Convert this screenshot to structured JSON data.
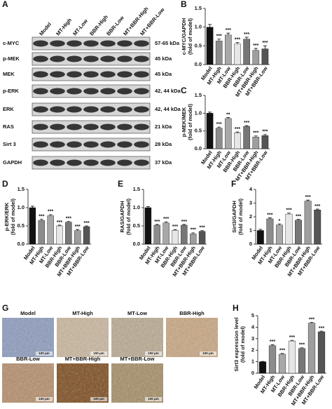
{
  "blot": {
    "panel": "A",
    "columns": [
      "Model",
      "MT-High",
      "MT-Low",
      "BBR-High",
      "BBR-Low",
      "MT+BBR-High",
      "MT+BBR-Low"
    ],
    "rows": [
      {
        "protein": "c-MYC",
        "size": "57-65 kDa"
      },
      {
        "protein": "p-MEK",
        "size": "45 kDa"
      },
      {
        "protein": "MEK",
        "size": "45 kDa"
      },
      {
        "protein": "p-ERK",
        "size": "42, 44 kDa"
      },
      {
        "protein": "ERK",
        "size": "42, 44 kDa"
      },
      {
        "protein": "RAS",
        "size": "21 kDa"
      },
      {
        "protein": "Sirt 3",
        "size": "28 kDa"
      },
      {
        "protein": "GAPDH",
        "size": "37 kDa"
      }
    ]
  },
  "histology": {
    "panel": "G",
    "samples": [
      "Model",
      "MT-High",
      "MT-Low",
      "BBR-High",
      "BBR-Low",
      "MT+BBR-High",
      "MT+BBR-Low"
    ],
    "scale_bar": "100 μm"
  },
  "chart_data": [
    {
      "type": "bar",
      "panel": "B",
      "ylabel": [
        "c-MYC/GAPDH",
        "(fold of model)"
      ],
      "categories": [
        "Model",
        "MT-High",
        "MT-Low",
        "BBR-High",
        "BBR-Low",
        "MT+BBR-High",
        "MT+BBR-Low"
      ],
      "values": [
        1.0,
        0.63,
        0.79,
        0.55,
        0.68,
        0.38,
        0.42
      ],
      "errors": [
        0.07,
        0.05,
        0.05,
        0.04,
        0.05,
        0.05,
        0.08
      ],
      "annotations": [
        null,
        "***",
        "***",
        "***",
        "***",
        "***",
        "***"
      ],
      "colors": [
        "#111111",
        "#8c8c8c",
        "#a8a8a8",
        "#e6e6e6",
        "#777777",
        "#9e9e9e",
        "#555555"
      ],
      "ylim": [
        0,
        1.5
      ],
      "yticks": [
        {
          "value": 0,
          "label": "0.0"
        },
        0.5,
        {
          "value": 1,
          "label": "1.0"
        },
        1.5
      ]
    },
    {
      "type": "bar",
      "panel": "C",
      "ylabel": [
        "p-MEK/MEK",
        "(fold of model)"
      ],
      "categories": [
        "Model",
        "MT-High",
        "MT-Low",
        "BBR-High",
        "BBR-Low",
        "MT+BBR-High",
        "MT+BBR-Low"
      ],
      "values": [
        1.0,
        0.58,
        0.85,
        0.45,
        0.63,
        0.33,
        0.37
      ],
      "errors": [
        0.03,
        0.03,
        0.03,
        0.02,
        0.02,
        0.03,
        0.03
      ],
      "annotations": [
        null,
        "***",
        "**",
        "***",
        "***",
        "***",
        "***"
      ],
      "colors": [
        "#111111",
        "#8c8c8c",
        "#a8a8a8",
        "#e6e6e6",
        "#777777",
        "#9e9e9e",
        "#555555"
      ],
      "ylim": [
        0,
        1.5
      ],
      "yticks": [
        {
          "value": 0,
          "label": "0.0"
        },
        0.5,
        {
          "value": 1,
          "label": "1.0"
        },
        1.5
      ]
    },
    {
      "type": "bar",
      "panel": "D",
      "ylabel": [
        "p-ERK/ERK",
        "(fold of model)"
      ],
      "categories": [
        "Model",
        "MT-High",
        "MT-Low",
        "BBR-High",
        "BBR-Low",
        "MT+BBR-High",
        "MT+BBR-Low"
      ],
      "values": [
        1.0,
        0.65,
        0.78,
        0.5,
        0.6,
        0.37,
        0.48
      ],
      "errors": [
        0.04,
        0.03,
        0.03,
        0.02,
        0.02,
        0.03,
        0.02
      ],
      "annotations": [
        null,
        "***",
        "***",
        "***",
        "***",
        "***",
        "***"
      ],
      "colors": [
        "#111111",
        "#8c8c8c",
        "#a8a8a8",
        "#e6e6e6",
        "#777777",
        "#9e9e9e",
        "#555555"
      ],
      "ylim": [
        0,
        1.5
      ],
      "yticks": [
        {
          "value": 0,
          "label": "0.0"
        },
        0.5,
        {
          "value": 1,
          "label": "1.0"
        },
        1.5
      ]
    },
    {
      "type": "bar",
      "panel": "E",
      "ylabel": [
        "RAS/GAPDH",
        "(fold of model)"
      ],
      "categories": [
        "Model",
        "MT-High",
        "MT-Low",
        "BBR-High",
        "BBR-Low",
        "MT+BBR-High",
        "MT+BBR-Low"
      ],
      "values": [
        1.0,
        0.52,
        0.58,
        0.38,
        0.52,
        0.28,
        0.35
      ],
      "errors": [
        0.03,
        0.02,
        0.03,
        0.02,
        0.02,
        0.03,
        0.02
      ],
      "annotations": [
        null,
        "***",
        "***",
        "***",
        "***",
        "***",
        "***"
      ],
      "colors": [
        "#111111",
        "#8c8c8c",
        "#a8a8a8",
        "#e6e6e6",
        "#777777",
        "#9e9e9e",
        "#555555"
      ],
      "ylim": [
        0,
        1.5
      ],
      "yticks": [
        {
          "value": 0,
          "label": "0.0"
        },
        0.5,
        {
          "value": 1,
          "label": "1.0"
        },
        1.5
      ]
    },
    {
      "type": "bar",
      "panel": "F",
      "ylabel": [
        "Sirt3/GAPDH",
        "(fold of model)"
      ],
      "categories": [
        "Model",
        "MT-High",
        "MT-Low",
        "BBR-High",
        "BBR-Low",
        "MT+BBR-High",
        "MT+BBR-Low"
      ],
      "values": [
        1.0,
        1.85,
        1.4,
        2.2,
        1.75,
        3.15,
        2.5
      ],
      "errors": [
        0.08,
        0.07,
        0.08,
        0.07,
        0.06,
        0.07,
        0.06
      ],
      "annotations": [
        null,
        "***",
        "*",
        "***",
        "***",
        "***",
        "***"
      ],
      "colors": [
        "#111111",
        "#8c8c8c",
        "#a8a8a8",
        "#e6e6e6",
        "#777777",
        "#9e9e9e",
        "#555555"
      ],
      "ylim": [
        0,
        4
      ],
      "yticks": [
        0,
        1,
        2,
        3,
        4
      ]
    },
    {
      "type": "bar",
      "panel": "H",
      "ylabel": [
        "Sirt3 expression level",
        "(fold of model)"
      ],
      "categories": [
        "Model",
        "MT-High",
        "MT-Low",
        "BBR-High",
        "BBR-Low",
        "MT+BBR-High",
        "MT+BBR-Low"
      ],
      "values": [
        1.0,
        2.4,
        1.65,
        2.8,
        2.15,
        4.35,
        3.6
      ],
      "errors": [
        0.03,
        0.08,
        0.07,
        0.06,
        0.06,
        0.07,
        0.06
      ],
      "annotations": [
        null,
        "***",
        "***",
        "***",
        "***",
        "***",
        "***"
      ],
      "colors": [
        "#111111",
        "#8c8c8c",
        "#a8a8a8",
        "#e6e6e6",
        "#777777",
        "#9e9e9e",
        "#555555"
      ],
      "ylim": [
        0,
        5
      ],
      "yticks": [
        0,
        1,
        2,
        3,
        4,
        5
      ]
    }
  ]
}
